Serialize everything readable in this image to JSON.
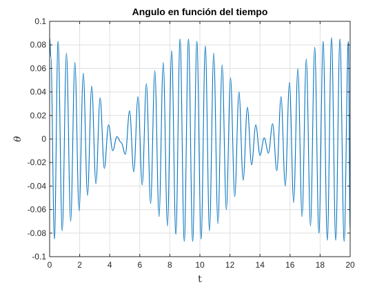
{
  "chart_data": {
    "type": "line",
    "title": "Angulo en función del tiempo",
    "xlabel": "t",
    "ylabel": "θ",
    "xlim": [
      0,
      20
    ],
    "ylim": [
      -0.1,
      0.1
    ],
    "x_ticks": [
      0,
      2,
      4,
      6,
      8,
      10,
      12,
      14,
      16,
      18,
      20
    ],
    "x_tick_labels": [
      "0",
      "2",
      "4",
      "6",
      "8",
      "10",
      "12",
      "14",
      "16",
      "18",
      "20"
    ],
    "y_ticks": [
      -0.1,
      -0.08,
      -0.06,
      -0.04,
      -0.02,
      0,
      0.02,
      0.04,
      0.06,
      0.08,
      0.1
    ],
    "y_tick_labels": [
      "-0.1",
      "-0.08",
      "-0.06",
      "-0.04",
      "-0.02",
      "0",
      "0.02",
      "0.04",
      "0.06",
      "0.08",
      "0.1"
    ],
    "grid": true,
    "line_color": "#0072BD",
    "series": [
      {
        "x": [
          0.0,
          0.08,
          0.32,
          0.56,
          0.84,
          1.12,
          1.4,
          1.68,
          1.96,
          2.24,
          2.52,
          2.8,
          3.08,
          3.36,
          3.64,
          3.92,
          4.2,
          4.48,
          4.76,
          5.04,
          5.32,
          5.6,
          5.88,
          6.16,
          6.44,
          6.72,
          7.0,
          7.28,
          7.56,
          7.84,
          8.12,
          8.4,
          8.68,
          8.96,
          9.24,
          9.52,
          9.8,
          10.08,
          10.36,
          10.64,
          10.92,
          11.2,
          11.48,
          11.76,
          12.04,
          12.32,
          12.6,
          12.88,
          13.16,
          13.44,
          13.72,
          14.0,
          14.28,
          14.56,
          14.84,
          15.12,
          15.4,
          15.68,
          15.96,
          16.24,
          16.52,
          16.8,
          17.08,
          17.36,
          17.64,
          17.92,
          18.2,
          18.48,
          18.76,
          19.04,
          19.32,
          19.6,
          19.88,
          20.0
        ],
        "y": [
          0.086,
          0.07,
          -0.085,
          0.083,
          -0.078,
          0.073,
          -0.07,
          0.065,
          -0.061,
          0.056,
          -0.048,
          0.045,
          -0.038,
          0.035,
          -0.025,
          0.012,
          -0.01,
          0.002,
          -0.003,
          -0.013,
          0.024,
          -0.028,
          0.036,
          -0.039,
          0.047,
          -0.055,
          0.058,
          -0.066,
          0.065,
          -0.074,
          0.075,
          -0.081,
          0.085,
          -0.087,
          0.085,
          -0.087,
          0.083,
          -0.085,
          0.079,
          -0.078,
          0.073,
          -0.072,
          0.063,
          -0.06,
          0.052,
          -0.049,
          0.04,
          -0.035,
          0.027,
          -0.022,
          0.012,
          -0.014,
          0.001,
          -0.012,
          0.013,
          -0.027,
          0.036,
          -0.04,
          0.048,
          -0.054,
          0.06,
          -0.066,
          0.068,
          -0.074,
          0.078,
          -0.08,
          0.083,
          -0.086,
          0.086,
          -0.086,
          0.085,
          -0.087,
          0.083,
          -0.078
        ]
      }
    ]
  }
}
